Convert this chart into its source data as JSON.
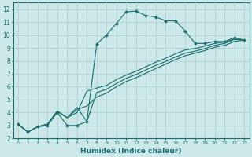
{
  "xlabel": "Humidex (Indice chaleur)",
  "bg_color": "#cce8e8",
  "grid_color": "#b0d0d0",
  "line_color": "#1a6e6e",
  "xlim": [
    -0.5,
    23.5
  ],
  "ylim": [
    2.0,
    12.5
  ],
  "xticks": [
    0,
    1,
    2,
    3,
    4,
    5,
    6,
    7,
    8,
    9,
    10,
    11,
    12,
    13,
    14,
    15,
    16,
    17,
    18,
    19,
    20,
    21,
    22,
    23
  ],
  "yticks": [
    2,
    3,
    4,
    5,
    6,
    7,
    8,
    9,
    10,
    11,
    12
  ],
  "line1_x": [
    0,
    1,
    2,
    3,
    4,
    5,
    6,
    7,
    8,
    9,
    10,
    11,
    12,
    13,
    14,
    15,
    16,
    17,
    18,
    19,
    20,
    21,
    22,
    23
  ],
  "line1_y": [
    3.1,
    2.5,
    2.9,
    3.0,
    4.0,
    3.0,
    3.0,
    3.3,
    9.3,
    10.0,
    10.9,
    11.8,
    11.85,
    11.5,
    11.4,
    11.1,
    11.1,
    10.3,
    9.35,
    9.35,
    9.5,
    9.5,
    9.8,
    9.6
  ],
  "line2_x": [
    0,
    1,
    2,
    3,
    4,
    5,
    6,
    7,
    8,
    9,
    10,
    11,
    12,
    13,
    14,
    15,
    16,
    17,
    18,
    19,
    20,
    21,
    22,
    23
  ],
  "line2_y": [
    3.1,
    2.5,
    2.9,
    3.1,
    4.1,
    3.6,
    4.0,
    5.65,
    5.9,
    6.1,
    6.55,
    6.9,
    7.2,
    7.55,
    7.9,
    8.2,
    8.55,
    8.85,
    8.95,
    9.15,
    9.35,
    9.45,
    9.7,
    9.6
  ],
  "line3_x": [
    0,
    1,
    2,
    3,
    4,
    5,
    6,
    7,
    8,
    9,
    10,
    11,
    12,
    13,
    14,
    15,
    16,
    17,
    18,
    19,
    20,
    21,
    22,
    23
  ],
  "line3_y": [
    3.1,
    2.5,
    2.9,
    3.1,
    4.1,
    3.6,
    4.4,
    3.3,
    5.55,
    5.8,
    6.25,
    6.65,
    6.95,
    7.3,
    7.65,
    7.95,
    8.3,
    8.6,
    8.75,
    8.95,
    9.2,
    9.35,
    9.65,
    9.6
  ],
  "line4_x": [
    0,
    1,
    2,
    3,
    4,
    5,
    6,
    7,
    8,
    9,
    10,
    11,
    12,
    13,
    14,
    15,
    16,
    17,
    18,
    19,
    20,
    21,
    22,
    23
  ],
  "line4_y": [
    3.1,
    2.5,
    2.9,
    3.1,
    4.1,
    3.6,
    4.25,
    4.5,
    5.2,
    5.5,
    6.0,
    6.4,
    6.7,
    7.05,
    7.4,
    7.75,
    8.1,
    8.4,
    8.6,
    8.8,
    9.05,
    9.2,
    9.5,
    9.6
  ]
}
